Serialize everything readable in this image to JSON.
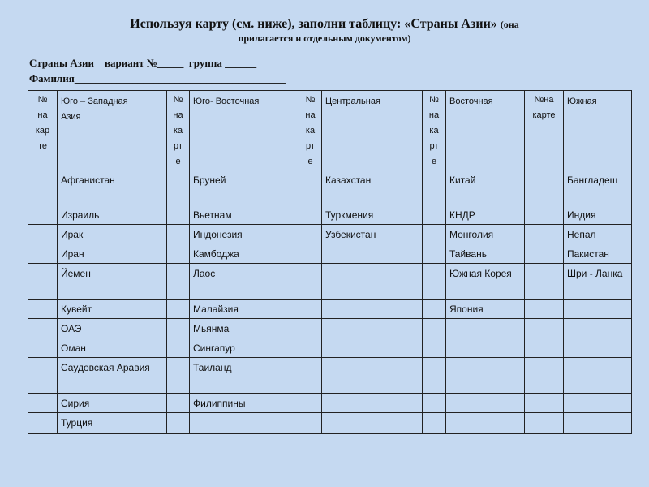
{
  "title": {
    "main": "Используя карту (см. ниже), заполни таблицу: «Страны Азии»",
    "note_part1": "(она",
    "note_part2": "прилагается и отдельным документом)"
  },
  "form": {
    "line1": "Страны Азии    вариант №_____  группа ______",
    "line2": "Фамилия________________________________________"
  },
  "table": {
    "headers": [
      "№\nна\nкар\nте",
      "Юго – Западная\nАзия",
      "№\nна\nка\nрт\nе",
      "Юго- Восточная",
      "№\nна\nка\nрт\nе",
      "Центральная",
      "№\nна\nка\nрт\nе",
      "Восточная",
      "№на\nкарте",
      "Южная"
    ],
    "rows": [
      [
        "Афганистан",
        "Бруней",
        "Казахстан",
        "Китай",
        "Бангладеш"
      ],
      [
        "Израиль",
        "Вьетнам",
        "Туркмения",
        "КНДР",
        "Индия"
      ],
      [
        "Ирак",
        "Индонезия",
        "Узбекистан",
        "Монголия",
        "Непал"
      ],
      [
        "Иран",
        "Камбоджа",
        "",
        "Тайвань",
        "Пакистан"
      ],
      [
        "Йемен",
        "Лаос",
        "",
        "Южная Корея",
        "Шри - Ланка"
      ],
      [
        "Кувейт",
        "Малайзия",
        "",
        "Япония",
        ""
      ],
      [
        "ОАЭ",
        "Мьянма",
        "",
        "",
        ""
      ],
      [
        "Оман",
        "Сингапур",
        "",
        "",
        ""
      ],
      [
        "Саудовская Аравия",
        "Таиланд",
        "",
        "",
        ""
      ],
      [
        "Сирия",
        "Филиппины",
        "",
        "",
        ""
      ],
      [
        "Турция",
        "",
        "",
        "",
        ""
      ]
    ]
  }
}
